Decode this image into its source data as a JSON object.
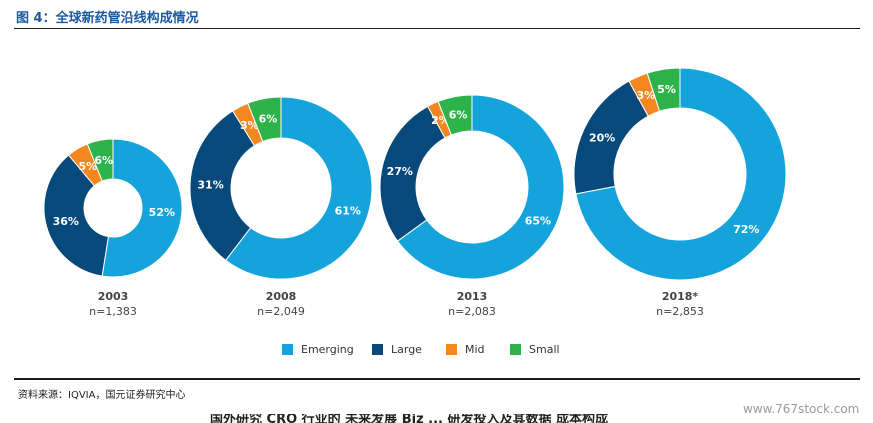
{
  "figure": {
    "title": "图 4：全球新药管沿线构成情况",
    "source": "资料来源：IQVIA，国元证券研究中心",
    "watermark": "www.767stock.com",
    "bottom_text": "国外研究 CRO 行业的 未来发展 Biz ... 研发投入及其数据 成本构成"
  },
  "colors": {
    "Emerging": "#15a3dc",
    "Large": "#07497b",
    "Mid": "#f4871f",
    "Small": "#2db34a"
  },
  "chart_data": {
    "type": "pie",
    "variant": "donut",
    "series_order": [
      "Emerging",
      "Large",
      "Mid",
      "Small"
    ],
    "charts": [
      {
        "year": "2003",
        "n_label": "n=1,383",
        "slices": [
          {
            "name": "Emerging",
            "value": 52,
            "label": "52%"
          },
          {
            "name": "Large",
            "value": 36,
            "label": "36%"
          },
          {
            "name": "Mid",
            "value": 5,
            "label": "5%"
          },
          {
            "name": "Small",
            "value": 6,
            "label": "6%"
          }
        ]
      },
      {
        "year": "2008",
        "n_label": "n=2,049",
        "slices": [
          {
            "name": "Emerging",
            "value": 61,
            "label": "61%"
          },
          {
            "name": "Large",
            "value": 31,
            "label": "31%"
          },
          {
            "name": "Mid",
            "value": 3,
            "label": "3%"
          },
          {
            "name": "Small",
            "value": 6,
            "label": "6%"
          }
        ]
      },
      {
        "year": "2013",
        "n_label": "n=2,083",
        "slices": [
          {
            "name": "Emerging",
            "value": 65,
            "label": "65%"
          },
          {
            "name": "Large",
            "value": 27,
            "label": "27%"
          },
          {
            "name": "Mid",
            "value": 2,
            "label": "2%"
          },
          {
            "name": "Small",
            "value": 6,
            "label": "6%"
          }
        ]
      },
      {
        "year": "2018*",
        "n_label": "n=2,853",
        "slices": [
          {
            "name": "Emerging",
            "value": 72,
            "label": "72%"
          },
          {
            "name": "Large",
            "value": 20,
            "label": "20%"
          },
          {
            "name": "Mid",
            "value": 3,
            "label": "3%"
          },
          {
            "name": "Small",
            "value": 5,
            "label": "5%"
          }
        ]
      }
    ],
    "legend": [
      {
        "name": "Emerging"
      },
      {
        "name": "Large"
      },
      {
        "name": "Mid"
      },
      {
        "name": "Small"
      }
    ],
    "legend_position": "bottom"
  }
}
